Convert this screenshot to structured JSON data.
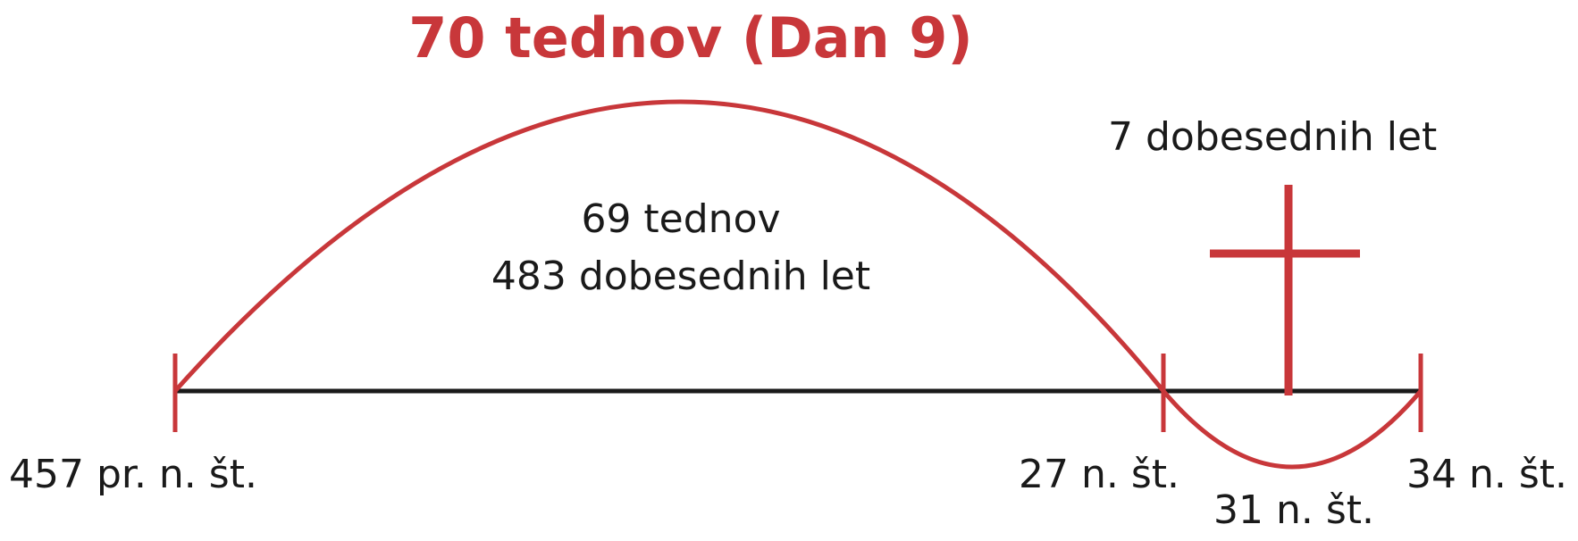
{
  "title": "70 tednov (Dan 9)",
  "big_arc": {
    "line1": "69 tednov",
    "line2": "483 dobesednih let"
  },
  "small_arc": {
    "label": "7 dobesednih let"
  },
  "dates": {
    "start": "457 pr. n. št.",
    "baptism": "27 n. št.",
    "cross": "31 n. št.",
    "end": "34 n. št."
  },
  "colors": {
    "accent": "#c8373a",
    "line": "#1a1a1a",
    "text": "#1a1a1a"
  },
  "icons": {
    "cross": "cross-icon"
  }
}
